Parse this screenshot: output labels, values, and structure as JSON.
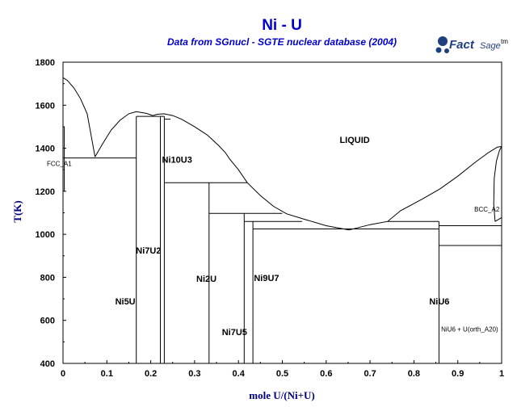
{
  "chart_data": {
    "type": "line",
    "title": "Ni - U",
    "subtitle": "Data from SGnucl - SGTE nuclear database (2004)",
    "xlabel": "mole U/(Ni+U)",
    "ylabel": "T(K)",
    "xlim": [
      0,
      1
    ],
    "ylim": [
      400,
      1800
    ],
    "xticks": [
      "0",
      "0.1",
      "0.2",
      "0.3",
      "0.4",
      "0.5",
      "0.6",
      "0.7",
      "0.8",
      "0.9",
      "1"
    ],
    "yticks": [
      "400",
      "600",
      "800",
      "1000",
      "1200",
      "1400",
      "1600",
      "1800"
    ],
    "grid": false,
    "phase_labels": [
      {
        "text": "LIQUID",
        "x": 0.665,
        "y": 1440,
        "size": "normal"
      },
      {
        "text": "FCC_A1",
        "x": -0.005,
        "y": 1333,
        "size": "small"
      },
      {
        "text": "Ni10U3",
        "x": 0.26,
        "y": 1348,
        "size": "normal"
      },
      {
        "text": "Ni7U2",
        "x": 0.195,
        "y": 925,
        "size": "normal"
      },
      {
        "text": "Ni2U",
        "x": 0.327,
        "y": 794,
        "size": "normal"
      },
      {
        "text": "Ni9U7",
        "x": 0.464,
        "y": 797,
        "size": "normal"
      },
      {
        "text": "Ni5U",
        "x": 0.142,
        "y": 689,
        "size": "normal"
      },
      {
        "text": "Ni7U5",
        "x": 0.391,
        "y": 546,
        "size": "normal"
      },
      {
        "text": "NiU6",
        "x": 0.858,
        "y": 689,
        "size": "normal"
      },
      {
        "text": "BCC_A2",
        "x": 0.995,
        "y": 1120,
        "size": "small"
      },
      {
        "text": "NiU6 + U(orth_A20)",
        "x": 0.992,
        "y": 563,
        "size": "small"
      }
    ],
    "series": [
      {
        "points": [
          [
            0,
            1728
          ],
          [
            0.01,
            1715
          ],
          [
            0.025,
            1680
          ],
          [
            0.04,
            1630
          ],
          [
            0.055,
            1560
          ],
          [
            0.065,
            1450
          ],
          [
            0.073,
            1360
          ]
        ]
      },
      {
        "points": [
          [
            0.073,
            1360
          ],
          [
            0.09,
            1420
          ],
          [
            0.11,
            1485
          ],
          [
            0.13,
            1530
          ],
          [
            0.15,
            1560
          ],
          [
            0.167,
            1570
          ],
          [
            0.19,
            1562
          ],
          [
            0.205,
            1552
          ]
        ]
      },
      {
        "points": [
          [
            0.205,
            1552
          ],
          [
            0.215,
            1558
          ],
          [
            0.23,
            1560
          ],
          [
            0.25,
            1552
          ],
          [
            0.27,
            1535
          ],
          [
            0.3,
            1500
          ],
          [
            0.33,
            1460
          ],
          [
            0.355,
            1412
          ],
          [
            0.37,
            1380
          ],
          [
            0.38,
            1350
          ],
          [
            0.4,
            1300
          ],
          [
            0.42,
            1240
          ],
          [
            0.45,
            1180
          ],
          [
            0.48,
            1130
          ],
          [
            0.51,
            1095
          ],
          [
            0.55,
            1070
          ],
          [
            0.6,
            1040
          ],
          [
            0.652,
            1020
          ]
        ]
      },
      {
        "points": [
          [
            0.652,
            1020
          ],
          [
            0.7,
            1045
          ],
          [
            0.74,
            1060
          ],
          [
            0.77,
            1110
          ],
          [
            0.82,
            1165
          ],
          [
            0.86,
            1212
          ],
          [
            0.9,
            1270
          ],
          [
            0.94,
            1335
          ],
          [
            0.97,
            1380
          ],
          [
            0.99,
            1405
          ],
          [
            1,
            1408
          ]
        ]
      },
      {
        "points": [
          [
            0.003,
            1200
          ],
          [
            0.003,
            1500
          ]
        ]
      },
      {
        "points": [
          [
            0,
            1355
          ],
          [
            0.167,
            1355
          ]
        ]
      },
      {
        "points": [
          [
            0.167,
            400
          ],
          [
            0.167,
            1548
          ]
        ]
      },
      {
        "points": [
          [
            0.167,
            1548
          ],
          [
            0.231,
            1548
          ]
        ]
      },
      {
        "points": [
          [
            0.222,
            400
          ],
          [
            0.222,
            1548
          ]
        ]
      },
      {
        "points": [
          [
            0.231,
            400
          ],
          [
            0.231,
            1548
          ]
        ]
      },
      {
        "points": [
          [
            0.231,
            1535
          ],
          [
            0.245,
            1535
          ]
        ]
      },
      {
        "points": [
          [
            0.231,
            1240
          ],
          [
            0.42,
            1240
          ]
        ]
      },
      {
        "points": [
          [
            0.333,
            400
          ],
          [
            0.333,
            1240
          ]
        ]
      },
      {
        "points": [
          [
            0.333,
            1097
          ],
          [
            0.5,
            1097
          ]
        ]
      },
      {
        "points": [
          [
            0.413,
            400
          ],
          [
            0.413,
            1097
          ]
        ]
      },
      {
        "points": [
          [
            0.413,
            1060
          ],
          [
            0.545,
            1060
          ]
        ]
      },
      {
        "points": [
          [
            0.433,
            400
          ],
          [
            0.433,
            1060
          ]
        ]
      },
      {
        "points": [
          [
            0.433,
            1025
          ],
          [
            0.857,
            1025
          ]
        ]
      },
      {
        "points": [
          [
            0.74,
            1060
          ],
          [
            0.857,
            1060
          ]
        ]
      },
      {
        "points": [
          [
            0.857,
            400
          ],
          [
            0.857,
            1060
          ]
        ]
      },
      {
        "points": [
          [
            0.857,
            1040
          ],
          [
            1,
            1040
          ]
        ]
      },
      {
        "points": [
          [
            0.857,
            948
          ],
          [
            1,
            948
          ]
        ]
      },
      {
        "points": [
          [
            0.985,
            1060
          ],
          [
            1,
            1078
          ]
        ]
      },
      {
        "points": [
          [
            0.985,
            1060
          ],
          [
            0.982,
            1140
          ],
          [
            0.983,
            1260
          ],
          [
            0.988,
            1340
          ],
          [
            0.995,
            1390
          ],
          [
            1,
            1408
          ]
        ]
      }
    ]
  },
  "logo": {
    "brand": "Fact",
    "brand_suffix": "Sage",
    "tm": "tm",
    "accent": "#1f3f7f"
  },
  "colors": {
    "title": "#0000cc",
    "axis_title": "#000080",
    "lines": "#000000"
  }
}
